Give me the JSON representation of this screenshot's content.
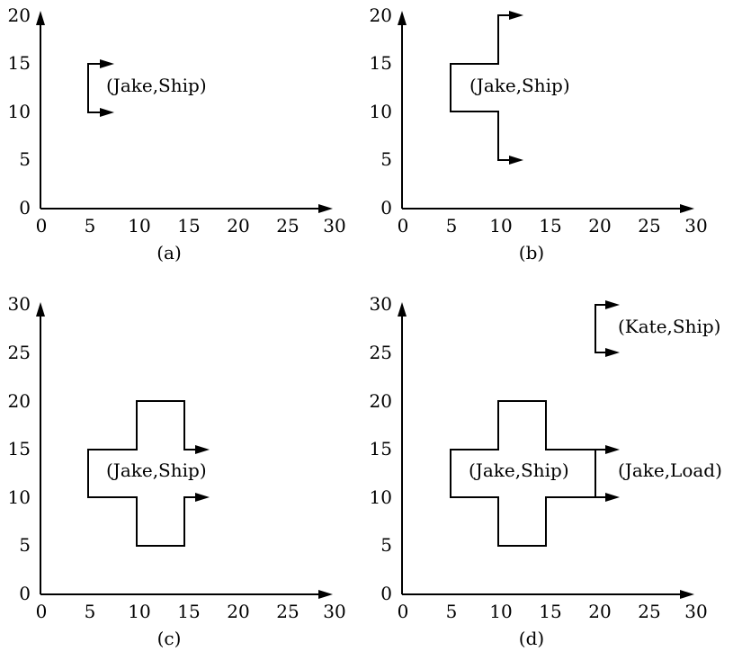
{
  "panels": [
    {
      "caption": "(a)",
      "xticks": [
        "0",
        "5",
        "10",
        "15",
        "20",
        "25",
        "30"
      ],
      "yticks": [
        "0",
        "5",
        "10",
        "15",
        "20"
      ],
      "region_labels": [
        "(Jake,Ship)"
      ]
    },
    {
      "caption": "(b)",
      "xticks": [
        "0",
        "5",
        "10",
        "15",
        "20",
        "25",
        "30"
      ],
      "yticks": [
        "0",
        "5",
        "10",
        "15",
        "20"
      ],
      "region_labels": [
        "(Jake,Ship)"
      ]
    },
    {
      "caption": "(c)",
      "xticks": [
        "0",
        "5",
        "10",
        "15",
        "20",
        "25",
        "30"
      ],
      "yticks": [
        "0",
        "5",
        "10",
        "15",
        "20",
        "25",
        "30"
      ],
      "region_labels": [
        "(Jake,Ship)"
      ]
    },
    {
      "caption": "(d)",
      "xticks": [
        "0",
        "5",
        "10",
        "15",
        "20",
        "25",
        "30"
      ],
      "yticks": [
        "0",
        "5",
        "10",
        "15",
        "20",
        "25",
        "30"
      ],
      "region_labels": [
        "(Jake,Ship)",
        "(Jake,Load)",
        "(Kate,Ship)"
      ]
    }
  ],
  "colors": {
    "line": "#000000",
    "background": "#ffffff"
  }
}
